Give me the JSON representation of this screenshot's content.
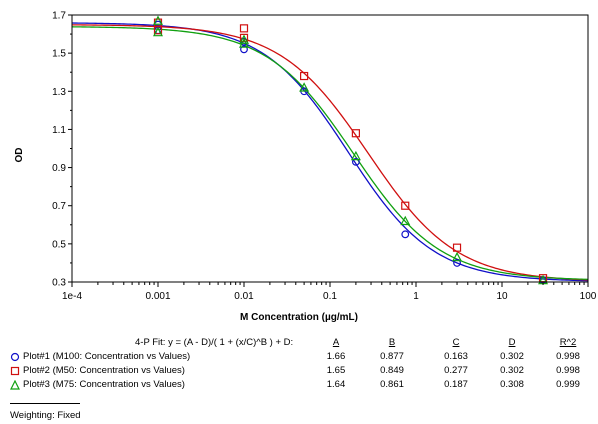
{
  "chart_data": {
    "type": "scatter",
    "xlabel": "M Concentration (µg/mL)",
    "ylabel": "OD",
    "x_scale": "log",
    "xlim": [
      0.0001,
      100
    ],
    "ylim": [
      0.3,
      1.7
    ],
    "x_tick_labels": [
      "1e-4",
      "0.001",
      "0.01",
      "0.1",
      "1",
      "10",
      "100"
    ],
    "y_ticks": [
      0.3,
      0.5,
      0.7,
      0.9,
      1.1,
      1.3,
      1.5,
      1.7
    ],
    "y_tick_labels": [
      "0.3",
      "0.5",
      "0.7",
      "0.9",
      "1.1",
      "1.3",
      "1.5",
      "1.7"
    ],
    "series": [
      {
        "name": "Plot#1 (M100: Concentration vs Values)",
        "color": "#1010c8",
        "marker": "circle",
        "fit": {
          "A": 1.66,
          "B": 0.877,
          "C": 0.163,
          "D": 0.302
        },
        "x": [
          0.001,
          0.001,
          0.01,
          0.01,
          0.05,
          0.2,
          0.75,
          3,
          30
        ],
        "y": [
          1.65,
          1.62,
          1.52,
          1.56,
          1.3,
          0.93,
          0.55,
          0.4,
          0.31
        ]
      },
      {
        "name": "Plot#2 (M50: Concentration vs Values)",
        "color": "#d01010",
        "marker": "square",
        "fit": {
          "A": 1.65,
          "B": 0.849,
          "C": 0.277,
          "D": 0.302
        },
        "x": [
          0.001,
          0.001,
          0.01,
          0.01,
          0.05,
          0.2,
          0.75,
          3,
          30
        ],
        "y": [
          1.66,
          1.62,
          1.63,
          1.58,
          1.38,
          1.08,
          0.7,
          0.48,
          0.32
        ]
      },
      {
        "name": "Plot#3 (M75: Concentration vs Values)",
        "color": "#10a010",
        "marker": "triangle",
        "fit": {
          "A": 1.64,
          "B": 0.861,
          "C": 0.187,
          "D": 0.308
        },
        "x": [
          0.001,
          0.001,
          0.01,
          0.01,
          0.05,
          0.2,
          0.75,
          3,
          30
        ],
        "y": [
          1.67,
          1.61,
          1.55,
          1.57,
          1.32,
          0.96,
          0.62,
          0.43,
          0.31
        ]
      }
    ]
  },
  "fit_table": {
    "formula": "4-P Fit: y = (A - D)/( 1 + (x/C)^B ) + D:",
    "headers": [
      "A",
      "B",
      "C",
      "D",
      "R^2"
    ],
    "rows": [
      {
        "label": "Plot#1 (M100: Concentration vs Values)",
        "values": [
          "1.66",
          "0.877",
          "0.163",
          "0.302",
          "0.998"
        ]
      },
      {
        "label": "Plot#2 (M50: Concentration vs Values)",
        "values": [
          "1.65",
          "0.849",
          "0.277",
          "0.302",
          "0.998"
        ]
      },
      {
        "label": "Plot#3 (M75: Concentration vs Values)",
        "values": [
          "1.64",
          "0.861",
          "0.187",
          "0.308",
          "0.999"
        ]
      }
    ]
  },
  "weighting": "Weighting: Fixed"
}
